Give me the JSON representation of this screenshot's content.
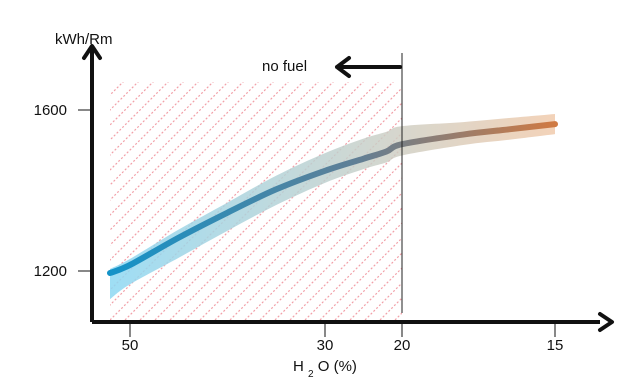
{
  "chart_data": {
    "type": "line",
    "title": "",
    "ylabel": "kWh/Rm",
    "xlabel": {
      "prefix": "H",
      "subscript": "2",
      "suffix": "O (%)"
    },
    "x_ticks": [
      50,
      30,
      20,
      15
    ],
    "y_ticks": [
      1200,
      1600
    ],
    "x": [
      52,
      50,
      45,
      40,
      35,
      30,
      25,
      22,
      20,
      18,
      16.5,
      15
    ],
    "y": [
      1195,
      1215,
      1283,
      1345,
      1403,
      1449,
      1479,
      1497,
      1515,
      1539,
      1552,
      1565
    ],
    "band_lower": [
      1130,
      1167,
      1233,
      1300,
      1364,
      1419,
      1453,
      1470,
      1487,
      1513,
      1526,
      1540
    ],
    "band_upper": [
      1205,
      1230,
      1303,
      1370,
      1437,
      1493,
      1529,
      1546,
      1560,
      1570,
      1580,
      1590
    ],
    "annotation": {
      "text": "no fuel",
      "threshold_x": 20
    },
    "hatch_region": {
      "from_x": 52,
      "to_x": 20
    },
    "colors": {
      "start": "#1493c8",
      "mid": "#5f7f96",
      "end": "#d07a43",
      "band_start": "#8ed8f3",
      "band_end": "#f0c8a8",
      "hatch": "#f2a0a8",
      "axis": "#111111"
    }
  }
}
